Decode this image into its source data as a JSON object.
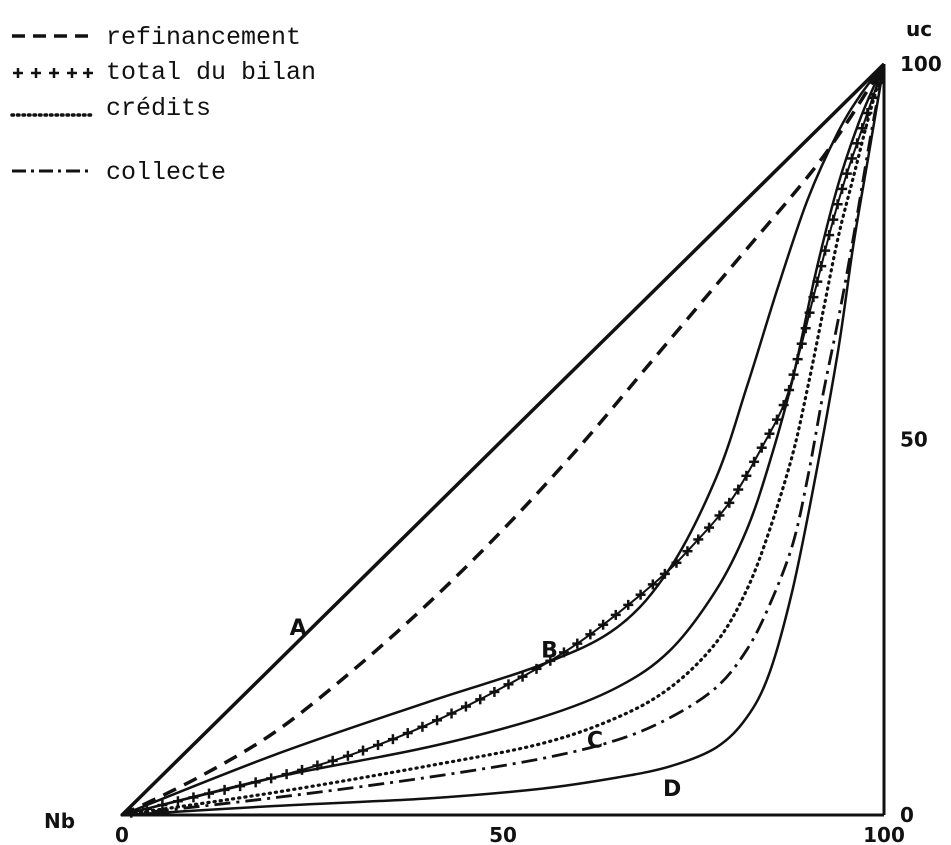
{
  "chart_data": {
    "type": "line",
    "xlabel": "Nb",
    "ylabel": "uc",
    "xlim": [
      0,
      100
    ],
    "ylim": [
      0,
      100
    ],
    "x_ticks": [
      "0",
      "50",
      "100"
    ],
    "y_ticks": [
      "0",
      "50",
      "100"
    ],
    "grid": false,
    "legend_position": "top-left",
    "legend": [
      {
        "label": "refinancement",
        "style": "dashed"
      },
      {
        "label": "total du bilan",
        "style": "plus"
      },
      {
        "label": "crédits",
        "style": "dotted"
      },
      {
        "label": "collecte",
        "style": "dash-dot"
      }
    ],
    "reference_curves": [
      {
        "name": "A",
        "label_at": [
          22,
          24
        ],
        "points": [
          [
            0,
            0
          ],
          [
            100,
            100
          ]
        ]
      },
      {
        "name": "B",
        "label_at": [
          55,
          21
        ],
        "points": [
          [
            0,
            0
          ],
          [
            20,
            8
          ],
          [
            40,
            15
          ],
          [
            55,
            20
          ],
          [
            65,
            25
          ],
          [
            72,
            33
          ],
          [
            78,
            45
          ],
          [
            82,
            57
          ],
          [
            86,
            70
          ],
          [
            90,
            82
          ],
          [
            94,
            91
          ],
          [
            97,
            96
          ],
          [
            100,
            100
          ]
        ]
      },
      {
        "name": "C",
        "label_at": [
          61,
          9
        ],
        "points": [
          [
            0,
            0
          ],
          [
            20,
            5
          ],
          [
            40,
            9
          ],
          [
            55,
            13
          ],
          [
            65,
            17
          ],
          [
            72,
            22
          ],
          [
            78,
            30
          ],
          [
            82,
            38
          ],
          [
            85,
            47
          ],
          [
            88,
            58
          ],
          [
            91,
            72
          ],
          [
            94,
            84
          ],
          [
            97,
            93
          ],
          [
            100,
            100
          ]
        ]
      },
      {
        "name": "D",
        "label_at": [
          71,
          2.5
        ],
        "points": [
          [
            0,
            0
          ],
          [
            20,
            1.2
          ],
          [
            40,
            2.2
          ],
          [
            55,
            3.5
          ],
          [
            65,
            5
          ],
          [
            72,
            6.5
          ],
          [
            78,
            9
          ],
          [
            82,
            13
          ],
          [
            85,
            19
          ],
          [
            88,
            30
          ],
          [
            91,
            45
          ],
          [
            94,
            62
          ],
          [
            96,
            76
          ],
          [
            98,
            88
          ],
          [
            100,
            100
          ]
        ]
      }
    ],
    "series": [
      {
        "name": "refinancement",
        "style": "dashed",
        "points": [
          [
            0,
            0
          ],
          [
            10,
            5
          ],
          [
            20,
            11
          ],
          [
            30,
            19
          ],
          [
            40,
            28
          ],
          [
            50,
            38
          ],
          [
            60,
            49
          ],
          [
            70,
            61
          ],
          [
            80,
            73
          ],
          [
            90,
            85
          ],
          [
            95,
            92
          ],
          [
            100,
            100
          ]
        ]
      },
      {
        "name": "total du bilan",
        "style": "plus",
        "points": [
          [
            0,
            0
          ],
          [
            10,
            2.5
          ],
          [
            20,
            5
          ],
          [
            30,
            8
          ],
          [
            40,
            12
          ],
          [
            50,
            17
          ],
          [
            60,
            23
          ],
          [
            70,
            31
          ],
          [
            75,
            36
          ],
          [
            80,
            42
          ],
          [
            84,
            49
          ],
          [
            87,
            55
          ],
          [
            89,
            62
          ],
          [
            91,
            70
          ],
          [
            93,
            78
          ],
          [
            95,
            85
          ],
          [
            97,
            91
          ],
          [
            99,
            97
          ],
          [
            100,
            100
          ]
        ]
      },
      {
        "name": "crédits",
        "style": "dotted",
        "points": [
          [
            0,
            0
          ],
          [
            20,
            3
          ],
          [
            40,
            6.5
          ],
          [
            55,
            9.5
          ],
          [
            65,
            13
          ],
          [
            72,
            17
          ],
          [
            78,
            23
          ],
          [
            82,
            30
          ],
          [
            85,
            38
          ],
          [
            88,
            48
          ],
          [
            90,
            57
          ],
          [
            92,
            67
          ],
          [
            94,
            77
          ],
          [
            96,
            85
          ],
          [
            98,
            93
          ],
          [
            100,
            100
          ]
        ]
      },
      {
        "name": "collecte",
        "style": "dash-dot",
        "points": [
          [
            0,
            0
          ],
          [
            20,
            2.3
          ],
          [
            40,
            5
          ],
          [
            55,
            7.5
          ],
          [
            65,
            10
          ],
          [
            72,
            13
          ],
          [
            78,
            17
          ],
          [
            82,
            22
          ],
          [
            85,
            28
          ],
          [
            88,
            36
          ],
          [
            90,
            45
          ],
          [
            92,
            56
          ],
          [
            94,
            66
          ],
          [
            96,
            77
          ],
          [
            98,
            89
          ],
          [
            100,
            100
          ]
        ]
      }
    ]
  }
}
